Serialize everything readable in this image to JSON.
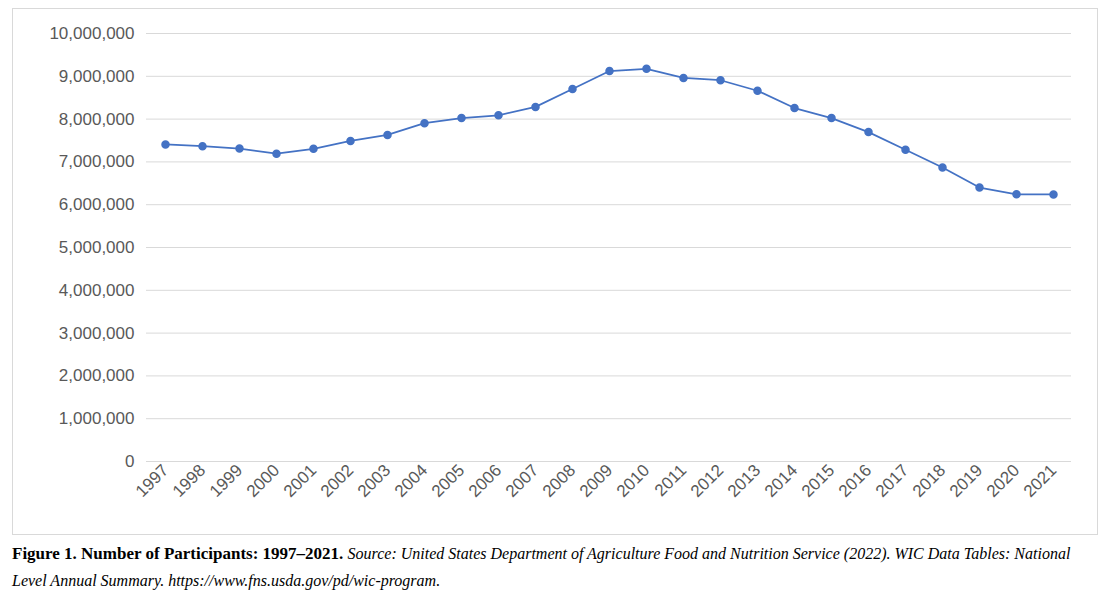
{
  "chart_data": {
    "type": "line",
    "title": "Figure 1. Number of Participants: 1997–2021.",
    "caption": "Source: United States Department of Agriculture Food and Nutrition Service (2022). WIC Data Tables: National Level Annual Summary. https://www.fns.usda.gov/pd/wic-program.",
    "categories": [
      "1997",
      "1998",
      "1999",
      "2000",
      "2001",
      "2002",
      "2003",
      "2004",
      "2005",
      "2006",
      "2007",
      "2008",
      "2009",
      "2010",
      "2011",
      "2012",
      "2013",
      "2014",
      "2015",
      "2016",
      "2017",
      "2018",
      "2019",
      "2020",
      "2021"
    ],
    "values": [
      7407000,
      7367000,
      7311000,
      7192000,
      7306000,
      7491000,
      7631000,
      7904000,
      8023000,
      8088000,
      8285000,
      8705000,
      9122000,
      9175000,
      8961000,
      8908000,
      8663000,
      8258000,
      8024000,
      7696000,
      7285000,
      6870000,
      6400000,
      6243000,
      6241000
    ],
    "color": "#4472c4",
    "marker": "circle",
    "ylim": [
      0,
      10000000
    ],
    "yticks": [
      0,
      {
        "value": 1000000,
        "label": "1,000,000"
      },
      {
        "value": 2000000,
        "label": "2,000,000"
      },
      {
        "value": 3000000,
        "label": "3,000,000"
      },
      {
        "value": 4000000,
        "label": "4,000,000"
      },
      {
        "value": 5000000,
        "label": "5,000,000"
      },
      {
        "value": 6000000,
        "label": "6,000,000"
      },
      {
        "value": 7000000,
        "label": "7,000,000"
      },
      {
        "value": 8000000,
        "label": "8,000,000"
      },
      {
        "value": 9000000,
        "label": "9,000,000"
      },
      {
        "value": 10000000,
        "label": "10,000,000"
      }
    ],
    "grid": true
  }
}
